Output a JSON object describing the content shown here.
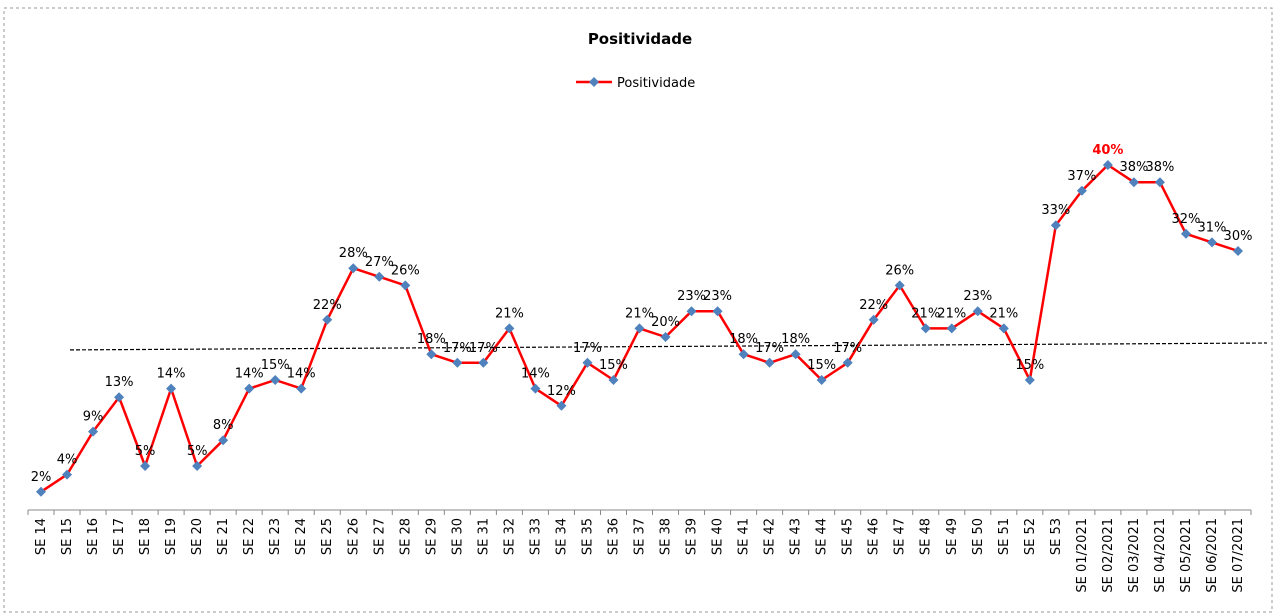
{
  "chart_data": {
    "type": "line",
    "title": "Positividade",
    "categories": [
      "SE 14",
      "SE 15",
      "SE 16",
      "SE 17",
      "SE 18",
      "SE 19",
      "SE 20",
      "SE 21",
      "SE 22",
      "SE 23",
      "SE 24",
      "SE 25",
      "SE 26",
      "SE 27",
      "SE 28",
      "SE 29",
      "SE 30",
      "SE 31",
      "SE 32",
      "SE 33",
      "SE 34",
      "SE 35",
      "SE 36",
      "SE 37",
      "SE 38",
      "SE 39",
      "SE 40",
      "SE 41",
      "SE 42",
      "SE 43",
      "SE 44",
      "SE 45",
      "SE 46",
      "SE 47",
      "SE 48",
      "SE 49",
      "SE 50",
      "SE 51",
      "SE 52",
      "SE 53",
      "SE 01/2021",
      "SE 02/2021",
      "SE 03/2021",
      "SE 04/2021",
      "SE 05/2021",
      "SE 06/2021",
      "SE 07/2021"
    ],
    "series": [
      {
        "name": "Positividade",
        "color": "#ff0000",
        "marker_color": "#4f81bd",
        "values": [
          2,
          4,
          9,
          13,
          5,
          14,
          5,
          8,
          14,
          15,
          14,
          22,
          28,
          27,
          26,
          18,
          17,
          17,
          21,
          14,
          12,
          17,
          15,
          21,
          20,
          23,
          23,
          18,
          17,
          18,
          15,
          17,
          22,
          26,
          21,
          21,
          23,
          21,
          15,
          33,
          37,
          40,
          38,
          38,
          32,
          31,
          30
        ],
        "value_labels": [
          "2%",
          "4%",
          "9%",
          "13%",
          "5%",
          "14%",
          "5%",
          "8%",
          "14%",
          "15%",
          "14%",
          "22%",
          "28%",
          "27%",
          "26%",
          "18%",
          "17%",
          "17%",
          "21%",
          "14%",
          "12%",
          "17%",
          "15%",
          "21%",
          "20%",
          "23%",
          "23%",
          "18%",
          "17%",
          "18%",
          "15%",
          "17%",
          "22%",
          "26%",
          "21%",
          "21%",
          "23%",
          "21%",
          "15%",
          "33%",
          "37%",
          "40%",
          "38%",
          "38%",
          "32%",
          "31%",
          "30%"
        ]
      }
    ],
    "highlight": {
      "index": 41,
      "color": "#ff0000"
    },
    "trend_line": {
      "values": [
        18.5,
        19.3
      ],
      "color": "#000000"
    },
    "ylim": [
      0,
      50
    ]
  }
}
